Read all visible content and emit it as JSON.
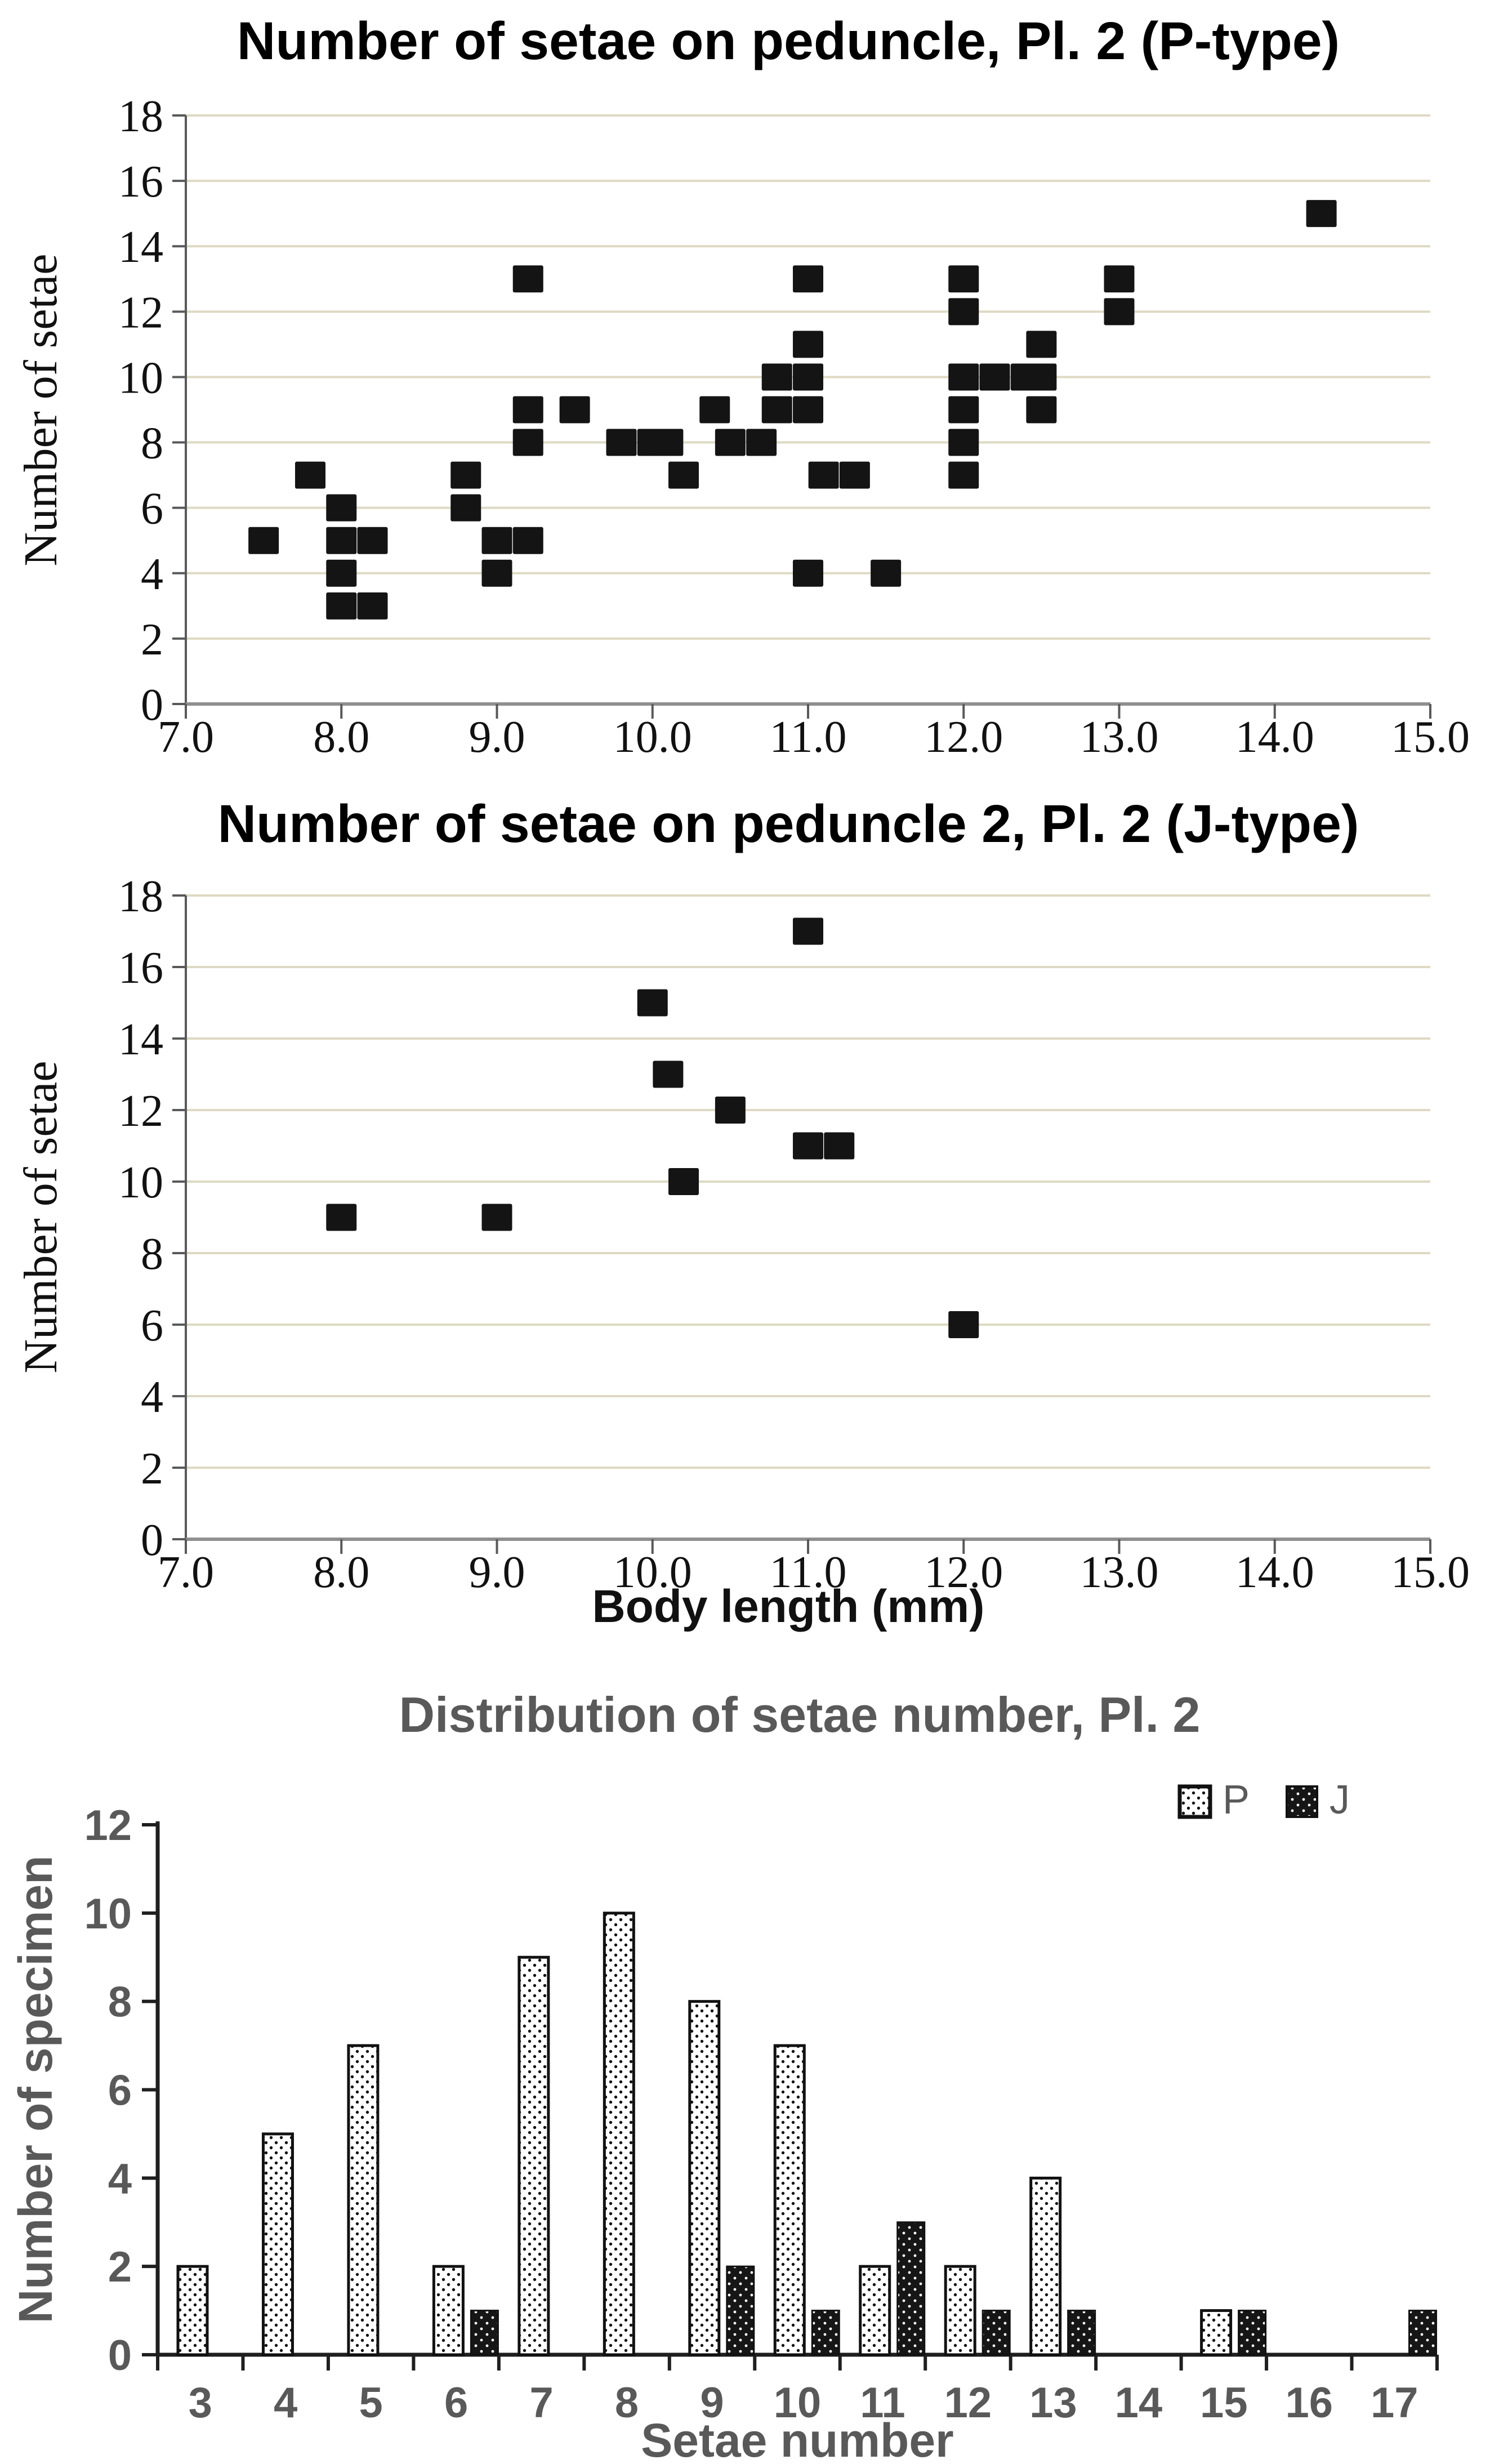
{
  "colors": {
    "background": "#ffffff",
    "marker": "#141414",
    "gridline": "#ded9c3",
    "scatter_x_axis": "#8f8f8f",
    "scatter_y_axis": "#595959",
    "hist_axis": "#1f1f1f",
    "gray_text": "#595959",
    "black_text": "#111111"
  },
  "chart_data": [
    {
      "type": "scatter",
      "title": "Number of setae on peduncle, Pl. 2 (P-type)",
      "xlabel": "",
      "ylabel": "Number of setae",
      "x_range": [
        7,
        15
      ],
      "y_range": [
        0,
        18
      ],
      "x_ticks": [
        "7.0",
        "8.0",
        "9.0",
        "10.0",
        "11.0",
        "12.0",
        "13.0",
        "14.0",
        "15.0"
      ],
      "y_ticks": [
        0,
        2,
        4,
        6,
        8,
        10,
        12,
        14,
        16,
        18
      ],
      "grid": "horizontal",
      "series_name": "P",
      "points": [
        [
          7.5,
          5
        ],
        [
          7.8,
          7
        ],
        [
          8.0,
          6
        ],
        [
          8.0,
          5
        ],
        [
          8.0,
          4
        ],
        [
          8.0,
          3
        ],
        [
          8.2,
          5
        ],
        [
          8.2,
          3
        ],
        [
          8.8,
          7
        ],
        [
          8.8,
          6
        ],
        [
          9.0,
          5
        ],
        [
          9.0,
          4
        ],
        [
          9.2,
          13
        ],
        [
          9.2,
          9
        ],
        [
          9.2,
          8
        ],
        [
          9.2,
          5
        ],
        [
          9.5,
          9
        ],
        [
          9.8,
          8
        ],
        [
          10.0,
          8
        ],
        [
          10.1,
          8
        ],
        [
          10.2,
          7
        ],
        [
          10.4,
          9
        ],
        [
          10.5,
          8
        ],
        [
          10.7,
          8
        ],
        [
          10.8,
          10
        ],
        [
          10.8,
          9
        ],
        [
          11.0,
          13
        ],
        [
          11.0,
          11
        ],
        [
          11.0,
          10
        ],
        [
          11.0,
          9
        ],
        [
          11.0,
          4
        ],
        [
          11.1,
          7
        ],
        [
          11.3,
          7
        ],
        [
          11.5,
          4
        ],
        [
          12.0,
          13
        ],
        [
          12.0,
          12
        ],
        [
          12.0,
          10
        ],
        [
          12.0,
          9
        ],
        [
          12.0,
          8
        ],
        [
          12.0,
          7
        ],
        [
          12.2,
          10
        ],
        [
          12.4,
          10
        ],
        [
          12.5,
          11
        ],
        [
          12.5,
          10
        ],
        [
          12.5,
          9
        ],
        [
          13.0,
          13
        ],
        [
          13.0,
          12
        ],
        [
          14.3,
          15
        ]
      ]
    },
    {
      "type": "scatter",
      "title": "Number of setae on peduncle 2, Pl. 2 (J-type)",
      "xlabel": "Body length (mm)",
      "ylabel": "Number of setae",
      "x_range": [
        7,
        15
      ],
      "y_range": [
        0,
        18
      ],
      "x_ticks": [
        "7.0",
        "8.0",
        "9.0",
        "10.0",
        "11.0",
        "12.0",
        "13.0",
        "14.0",
        "15.0"
      ],
      "y_ticks": [
        0,
        2,
        4,
        6,
        8,
        10,
        12,
        14,
        16,
        18
      ],
      "grid": "horizontal",
      "series_name": "J",
      "points": [
        [
          8.0,
          9
        ],
        [
          9.0,
          9
        ],
        [
          10.0,
          15
        ],
        [
          10.1,
          13
        ],
        [
          10.2,
          10
        ],
        [
          10.5,
          12
        ],
        [
          11.0,
          17
        ],
        [
          11.0,
          11
        ],
        [
          11.2,
          11
        ],
        [
          12.0,
          6
        ]
      ]
    },
    {
      "type": "bar",
      "title": "Distribution of setae number, Pl. 2",
      "xlabel": "Setae number",
      "ylabel": "Number of specimen",
      "categories": [
        "3",
        "4",
        "5",
        "6",
        "7",
        "8",
        "9",
        "10",
        "11",
        "12",
        "13",
        "14",
        "15",
        "16",
        "17"
      ],
      "y_ticks": [
        0,
        2,
        4,
        6,
        8,
        10,
        12
      ],
      "y_range": [
        0,
        12
      ],
      "grid": "off",
      "legend_position": "top-right",
      "series": [
        {
          "name": "P",
          "pattern": "black-dots-on-white",
          "values": [
            2,
            5,
            7,
            2,
            9,
            10,
            8,
            7,
            2,
            2,
            4,
            0,
            1,
            0,
            0
          ]
        },
        {
          "name": "J",
          "pattern": "white-dots-on-black",
          "values": [
            0,
            0,
            0,
            1,
            0,
            0,
            2,
            1,
            3,
            1,
            1,
            0,
            1,
            0,
            1
          ]
        }
      ]
    }
  ]
}
